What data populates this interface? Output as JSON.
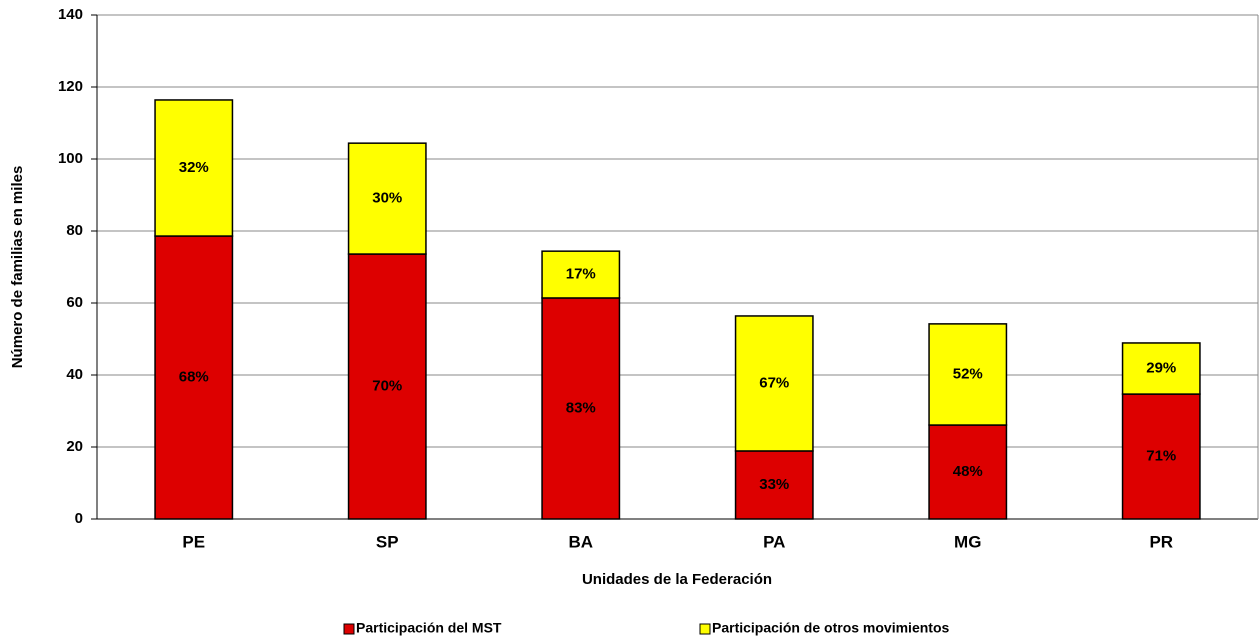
{
  "chart_data": {
    "type": "stacked_bar",
    "x_label": "Unidades de la Federación",
    "y_label": "Número de familias en miles",
    "categories": [
      "PE",
      "SP",
      "BA",
      "PA",
      "MG",
      "PR"
    ],
    "series": [
      {
        "name": "Participación del MST",
        "color": "#dd0000",
        "values": [
          78.6,
          73.6,
          61.4,
          18.9,
          26.1,
          34.7
        ],
        "share_labels": [
          "68%",
          "70%",
          "83%",
          "33%",
          "48%",
          "71%"
        ]
      },
      {
        "name": "Participación de otros movimientos",
        "color": "#ffff00",
        "values": [
          37.8,
          30.8,
          13.0,
          37.5,
          28.1,
          14.2
        ],
        "share_labels": [
          "32%",
          "30%",
          "17%",
          "67%",
          "52%",
          "29%"
        ]
      }
    ],
    "ylim": [
      0,
      140
    ],
    "yticks": [
      0,
      20,
      40,
      60,
      80,
      100,
      120,
      140
    ],
    "grid": true
  }
}
